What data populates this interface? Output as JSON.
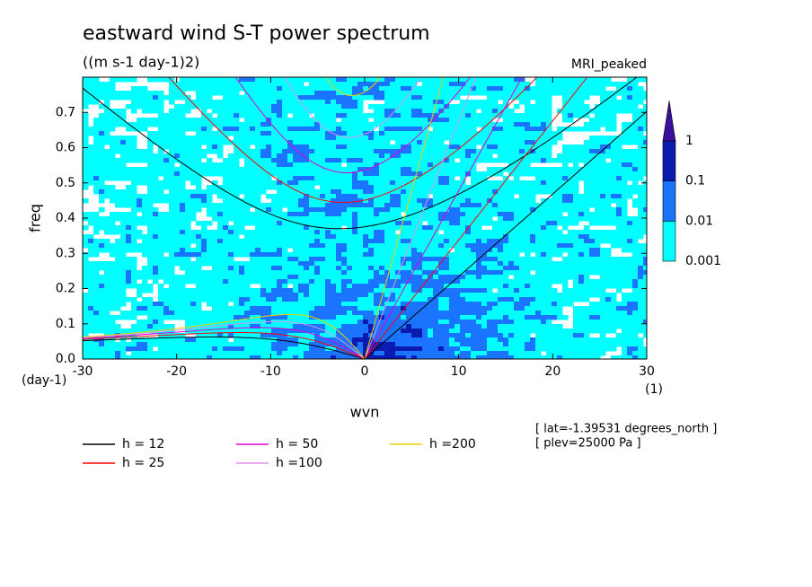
{
  "title": "eastward wind S-T power spectrum",
  "subtitle": "((m s-1 day-1)2)",
  "model": "MRI_peaked",
  "annotations": [
    "[ lat=-1.39531 degrees_north ]",
    "[ plev=25000 Pa ]"
  ],
  "chart_data": {
    "type": "contour",
    "xlabel": "wvn",
    "ylabel": "freq",
    "x_unit": "(1)",
    "y_unit": "(day-1)",
    "xlim": [
      -30,
      30
    ],
    "xticks": [
      -30,
      -20,
      -10,
      0,
      10,
      20,
      30
    ],
    "ylim": [
      0,
      0.8
    ],
    "yticks": [
      {
        "value": 0,
        "label": "0.0"
      },
      0.1,
      0.2,
      0.3,
      0.4,
      0.5,
      0.6,
      0.7
    ],
    "colorbar": {
      "levels": [
        0.001,
        0.01,
        0.1,
        1
      ],
      "colors": [
        "#00ffff",
        "#1a74ff",
        "#0a1cb0",
        "#3a0f9e"
      ]
    },
    "series": [
      {
        "name": "h = 12",
        "color": "#000000",
        "h": 12
      },
      {
        "name": "h = 25",
        "color": "#ff0000",
        "h": 25
      },
      {
        "name": "h = 50",
        "color": "#e000d0",
        "h": 50
      },
      {
        "name": "h =100",
        "color": "#e090e8",
        "h": 100
      },
      {
        "name": "h =200",
        "color": "#f0d000",
        "h": 200
      }
    ]
  }
}
